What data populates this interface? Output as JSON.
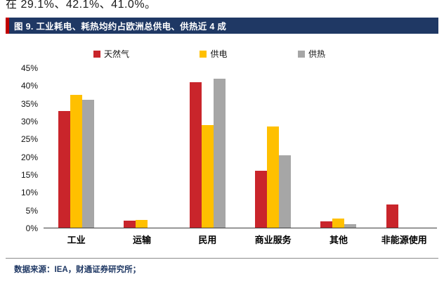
{
  "page": {
    "top_text": "在 29.1%、42.1%、41.0%。",
    "source_text": "数据来源：IEA，财通证券研究所；"
  },
  "figure": {
    "title": "图 9. 工业耗电、耗热均约占欧洲总供电、供热近 4 成"
  },
  "colors": {
    "title_bar_bg": "#1f3864",
    "title_bar_accent": "#c00000",
    "source_text": "#1f3864",
    "axis_line": "#3c3c3c"
  },
  "chart_data": {
    "type": "bar",
    "title": "图 9. 工业耗电、耗热均约占欧洲总供电、供热近 4 成",
    "categories": [
      "工业",
      "运输",
      "民用",
      "商业服务",
      "其他",
      "非能源使用"
    ],
    "series": [
      {
        "name": "天然气",
        "color": "#c9252b",
        "values": [
          33,
          2,
          41,
          16,
          1.7,
          6.5
        ]
      },
      {
        "name": "供电",
        "color": "#ffc000",
        "values": [
          37.5,
          2.2,
          29,
          28.5,
          2.5,
          0
        ]
      },
      {
        "name": "供热",
        "color": "#a6a6a6",
        "values": [
          36,
          0,
          42,
          20.5,
          1,
          0
        ]
      }
    ],
    "ylim": [
      0,
      45
    ],
    "ytick_step": 5,
    "ytick_suffix": "%",
    "legend_position": "top",
    "grid": false
  }
}
